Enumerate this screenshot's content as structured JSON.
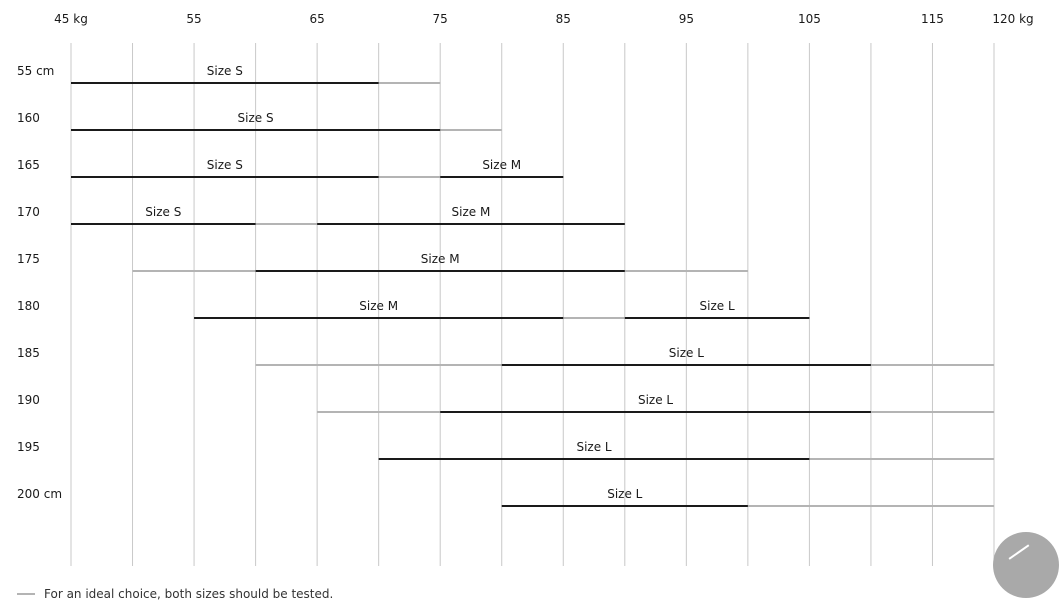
{
  "chart_data": {
    "type": "range-bar",
    "x_tick_labels": [
      "45 kg",
      "55",
      "65",
      "75",
      "85",
      "95",
      "105",
      "115",
      "120 kg"
    ],
    "x_tick_values": [
      45,
      55,
      65,
      75,
      85,
      95,
      105,
      115,
      120
    ],
    "x_gridlines": [
      45,
      50,
      55,
      60,
      65,
      70,
      75,
      80,
      85,
      90,
      95,
      100,
      105,
      110,
      115,
      120
    ],
    "xlim": [
      45,
      120
    ],
    "grid": true,
    "rows": [
      {
        "label": "55 cm",
        "segments": [
          {
            "from": 45,
            "to": 70,
            "size": "S",
            "label": "Size S"
          },
          {
            "from": 70,
            "to": 75,
            "size": "S/M",
            "label": ""
          }
        ]
      },
      {
        "label": "160",
        "segments": [
          {
            "from": 45,
            "to": 75,
            "size": "S",
            "label": "Size S"
          },
          {
            "from": 75,
            "to": 80,
            "size": "S/M",
            "label": ""
          }
        ]
      },
      {
        "label": "165",
        "segments": [
          {
            "from": 45,
            "to": 70,
            "size": "S",
            "label": "Size S"
          },
          {
            "from": 70,
            "to": 75,
            "size": "S/M",
            "label": ""
          },
          {
            "from": 75,
            "to": 85,
            "size": "M",
            "label": "Size M"
          }
        ]
      },
      {
        "label": "170",
        "segments": [
          {
            "from": 45,
            "to": 60,
            "size": "S",
            "label": "Size S"
          },
          {
            "from": 60,
            "to": 65,
            "size": "S/M",
            "label": ""
          },
          {
            "from": 65,
            "to": 90,
            "size": "M",
            "label": "Size M"
          }
        ]
      },
      {
        "label": "175",
        "segments": [
          {
            "from": 50,
            "to": 60,
            "size": "S/M",
            "label": ""
          },
          {
            "from": 60,
            "to": 90,
            "size": "M",
            "label": "Size M"
          },
          {
            "from": 90,
            "to": 100,
            "size": "M/L",
            "label": ""
          }
        ]
      },
      {
        "label": "180",
        "segments": [
          {
            "from": 55,
            "to": 85,
            "size": "M",
            "label": "Size M"
          },
          {
            "from": 85,
            "to": 90,
            "size": "M/L",
            "label": ""
          },
          {
            "from": 90,
            "to": 105,
            "size": "L",
            "label": "Size L"
          }
        ]
      },
      {
        "label": "185",
        "segments": [
          {
            "from": 60,
            "to": 80,
            "size": "M/L",
            "label": ""
          },
          {
            "from": 80,
            "to": 110,
            "size": "L",
            "label": "Size L"
          },
          {
            "from": 110,
            "to": 120,
            "size": "L/XL",
            "label": ""
          }
        ]
      },
      {
        "label": "190",
        "segments": [
          {
            "from": 65,
            "to": 75,
            "size": "M/L",
            "label": ""
          },
          {
            "from": 75,
            "to": 110,
            "size": "L",
            "label": "Size L"
          },
          {
            "from": 110,
            "to": 120,
            "size": "L/XL",
            "label": ""
          }
        ]
      },
      {
        "label": "195",
        "segments": [
          {
            "from": 70,
            "to": 105,
            "size": "L",
            "label": "Size L"
          },
          {
            "from": 105,
            "to": 120,
            "size": "L/XL",
            "label": ""
          }
        ]
      },
      {
        "label": "200 cm",
        "segments": [
          {
            "from": 80,
            "to": 100,
            "size": "L",
            "label": "Size L"
          },
          {
            "from": 100,
            "to": 120,
            "size": "L/XL",
            "label": ""
          }
        ]
      }
    ],
    "segment_label_positions": {
      "55 cm": 57.5,
      "160": 60,
      "165|S": 57.5,
      "165|M": 80,
      "170|S": 52.5,
      "170|M": 77.5,
      "175": 75,
      "180|M": 70,
      "180|L": 97.5,
      "185": 95,
      "190": 92.5,
      "195": 87.5,
      "200 cm": 90
    }
  },
  "legend": {
    "footnote": "For an ideal choice, both sizes should be tested."
  },
  "colors": {
    "primary_line": "#1a1a1a",
    "secondary_line": "#b4b4b4",
    "gridline": "#c8c8c8",
    "fab": "#a9a9a9"
  },
  "icons": {
    "fab": "arrow-up-icon"
  }
}
